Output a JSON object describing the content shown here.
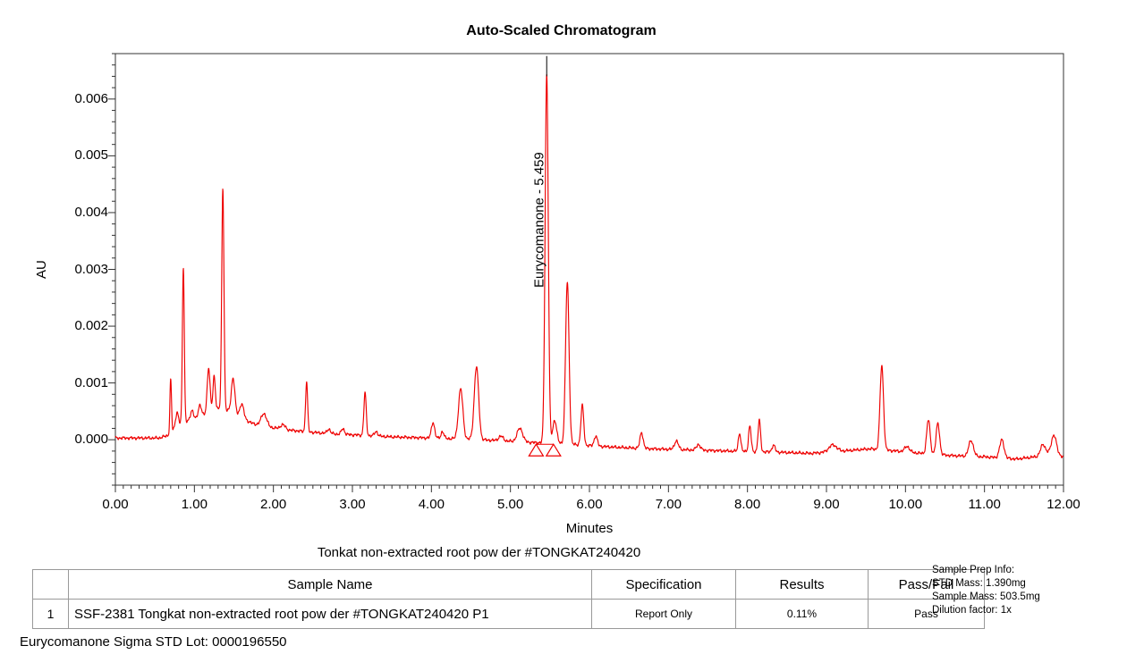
{
  "chart_data": {
    "type": "line",
    "title": "Auto-Scaled Chromatogram",
    "xlabel": "Minutes",
    "ylabel": "AU",
    "xlim": [
      0,
      12
    ],
    "ylim": [
      -0.0008,
      0.0068
    ],
    "grid": false,
    "line_color": "#ee0000",
    "axis_color": "#333333",
    "x_ticks": {
      "values": [
        0,
        1,
        2,
        3,
        4,
        5,
        6,
        7,
        8,
        9,
        10,
        11,
        12
      ],
      "labels": [
        "0.00",
        "1.00",
        "2.00",
        "3.00",
        "4.00",
        "5.00",
        "6.00",
        "7.00",
        "8.00",
        "9.00",
        "10.00",
        "11.00",
        "12.00"
      ],
      "minor_step": 0.1
    },
    "y_ticks": {
      "values": [
        0,
        0.001,
        0.002,
        0.003,
        0.004,
        0.005,
        0.006
      ],
      "labels": [
        "0.000",
        "0.001",
        "0.002",
        "0.003",
        "0.004",
        "0.005",
        "0.006"
      ],
      "minor_step": 0.0002
    },
    "peak_label": {
      "text": "Eurycomanone - 5.459",
      "time": 5.459,
      "apex_au": 0.0064,
      "tick_top_au": 0.0066
    },
    "integration_markers": {
      "start_time": 5.325,
      "end_time": 5.545,
      "level_au": -8e-05
    },
    "trace": {
      "noise_amp": 1.4e-05,
      "baseline_points": [
        [
          0,
          3e-05
        ],
        [
          0.55,
          3e-05
        ],
        [
          0.68,
          8e-05
        ],
        [
          0.75,
          0.0002
        ],
        [
          0.85,
          0.0003
        ],
        [
          1.0,
          0.00035
        ],
        [
          1.15,
          0.00045
        ],
        [
          1.3,
          0.00055
        ],
        [
          1.45,
          0.0005
        ],
        [
          1.6,
          0.00038
        ],
        [
          1.75,
          0.00028
        ],
        [
          1.95,
          0.00022
        ],
        [
          2.2,
          0.00017
        ],
        [
          2.5,
          0.00013
        ],
        [
          2.8,
          0.0001
        ],
        [
          3.1,
          8e-05
        ],
        [
          3.5,
          5e-05
        ],
        [
          4.0,
          3e-05
        ],
        [
          4.5,
          1e-05
        ],
        [
          4.9,
          -2e-05
        ],
        [
          5.3,
          -5e-05
        ],
        [
          5.6,
          -6e-05
        ],
        [
          5.95,
          -0.0001
        ],
        [
          6.3,
          -0.00013
        ],
        [
          6.8,
          -0.00016
        ],
        [
          7.3,
          -0.00018
        ],
        [
          7.8,
          -0.0002
        ],
        [
          8.4,
          -0.00022
        ],
        [
          8.8,
          -0.00024
        ],
        [
          9.2,
          -0.0002
        ],
        [
          9.55,
          -0.00016
        ],
        [
          9.9,
          -0.0002
        ],
        [
          10.2,
          -0.00024
        ],
        [
          10.6,
          -0.00028
        ],
        [
          11.0,
          -0.0003
        ],
        [
          11.4,
          -0.00034
        ],
        [
          11.65,
          -0.0003
        ],
        [
          11.85,
          -0.00022
        ],
        [
          12,
          -0.0003
        ]
      ],
      "peaks": [
        [
          0.7,
          0.00095,
          0.01
        ],
        [
          0.78,
          0.00025,
          0.018
        ],
        [
          0.86,
          0.00275,
          0.012
        ],
        [
          0.97,
          0.00018,
          0.02
        ],
        [
          1.07,
          0.00022,
          0.02
        ],
        [
          1.18,
          0.0008,
          0.018
        ],
        [
          1.25,
          0.0006,
          0.015
        ],
        [
          1.36,
          0.0039,
          0.014
        ],
        [
          1.49,
          0.00062,
          0.022
        ],
        [
          1.6,
          0.00025,
          0.025
        ],
        [
          1.88,
          0.00022,
          0.035
        ],
        [
          2.12,
          8e-05,
          0.03
        ],
        [
          2.42,
          0.00088,
          0.013
        ],
        [
          2.7,
          8e-05,
          0.02
        ],
        [
          2.88,
          0.0001,
          0.02
        ],
        [
          3.16,
          0.00075,
          0.015
        ],
        [
          3.3,
          8e-05,
          0.02
        ],
        [
          4.02,
          0.00028,
          0.02
        ],
        [
          4.14,
          0.00012,
          0.018
        ],
        [
          4.37,
          0.00088,
          0.028
        ],
        [
          4.57,
          0.00128,
          0.028
        ],
        [
          4.88,
          8e-05,
          0.03
        ],
        [
          5.12,
          0.00024,
          0.035
        ],
        [
          5.459,
          0.00648,
          0.02
        ],
        [
          5.56,
          0.0004,
          0.025
        ],
        [
          5.72,
          0.00285,
          0.022
        ],
        [
          5.91,
          0.0007,
          0.018
        ],
        [
          6.08,
          0.00018,
          0.02
        ],
        [
          6.66,
          0.00028,
          0.02
        ],
        [
          7.1,
          0.00015,
          0.025
        ],
        [
          7.38,
          0.0001,
          0.025
        ],
        [
          7.9,
          0.00032,
          0.016
        ],
        [
          8.03,
          0.00045,
          0.016
        ],
        [
          8.15,
          0.00055,
          0.016
        ],
        [
          8.33,
          0.00012,
          0.02
        ],
        [
          9.08,
          0.00012,
          0.05
        ],
        [
          9.7,
          0.00148,
          0.022
        ],
        [
          10.02,
          0.0001,
          0.03
        ],
        [
          10.29,
          0.0006,
          0.022
        ],
        [
          10.41,
          0.00055,
          0.022
        ],
        [
          10.83,
          0.00028,
          0.03
        ],
        [
          11.22,
          0.00032,
          0.028
        ],
        [
          11.74,
          0.00018,
          0.03
        ],
        [
          11.88,
          0.00032,
          0.03
        ]
      ]
    }
  },
  "caption": "Tonkat non-extracted root pow der #TONGKAT240420",
  "table": {
    "headers": [
      "",
      "Sample Name",
      "Specification",
      "Results",
      "Pass/Fail"
    ],
    "rows": [
      [
        "1",
        "SSF-2381 Tongkat non-extracted root pow der #TONGKAT240420 P1",
        "Report Only",
        "0.11%",
        "Pass"
      ]
    ]
  },
  "sample_prep": {
    "title": "Sample Prep Info:",
    "lines": [
      "STD Mass: 1.390mg",
      "Sample Mass: 503.5mg",
      "Dilution factor: 1x"
    ]
  },
  "footer": "Eurycomanone Sigma STD Lot: 0000196550"
}
